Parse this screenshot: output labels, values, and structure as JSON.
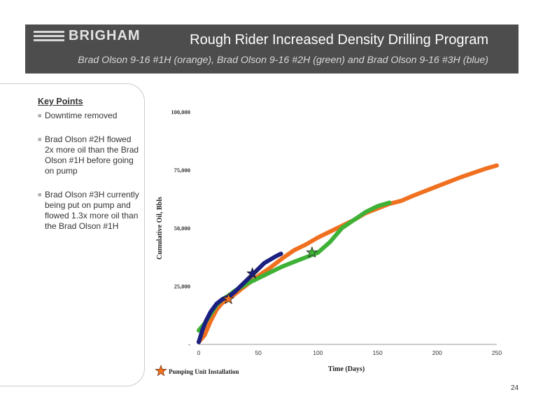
{
  "header": {
    "logo_text": "BRIGHAM",
    "title": "Rough Rider Increased Density Drilling Program",
    "subtitle": "Brad Olson 9-16 #1H (orange), Brad Olson 9-16 #2H (green) and Brad Olson 9-16 #3H (blue)"
  },
  "key_points": {
    "title": "Key Points",
    "items": [
      {
        "text": "Downtime removed"
      },
      {
        "text": "Brad Olson #2H flowed 2x more oil than the Brad Olson #1H before going on pump"
      },
      {
        "text": "Brad Olson #3H currently being put on pump and flowed 1.3x more oil than the Brad Olson #1H"
      }
    ]
  },
  "page_number": "24",
  "chart_data": {
    "type": "line",
    "title": "",
    "xlabel": "Time (Days)",
    "ylabel": "Cumulative Oil, Bbls",
    "xlim": [
      0,
      250
    ],
    "ylim": [
      0,
      100000
    ],
    "x_ticks": [
      "0",
      "50",
      "100",
      "150",
      "200",
      "250"
    ],
    "y_ticks": [
      "-",
      "25,000",
      "50,000",
      "75,000",
      "100,000"
    ],
    "grid": false,
    "series": [
      {
        "color": "#f07020",
        "x": [
          0,
          5,
          10,
          15,
          20,
          25,
          30,
          40,
          50,
          60,
          70,
          80,
          90,
          100,
          110,
          120,
          130,
          140,
          150,
          160,
          170,
          180,
          200,
          220,
          240,
          250
        ],
        "y": [
          1000,
          4000,
          10000,
          15000,
          18000,
          19500,
          21500,
          25500,
          29500,
          33000,
          37000,
          40500,
          43000,
          46000,
          48500,
          51000,
          53500,
          56500,
          58500,
          60500,
          61800,
          64000,
          68000,
          72000,
          75500,
          77000
        ]
      },
      {
        "color": "#3eb236",
        "x": [
          0,
          5,
          10,
          15,
          20,
          25,
          30,
          40,
          50,
          60,
          70,
          80,
          90,
          100,
          110,
          120,
          130,
          140,
          150,
          160
        ],
        "y": [
          6000,
          9000,
          13000,
          17000,
          19500,
          21000,
          23000,
          26000,
          28500,
          31000,
          33500,
          35500,
          37500,
          39500,
          44000,
          50000,
          53500,
          57000,
          59500,
          61000
        ]
      },
      {
        "color": "#1a1f80",
        "x": [
          0,
          3,
          6,
          10,
          15,
          20,
          25,
          30,
          35,
          40,
          45,
          50,
          55,
          60,
          65,
          69
        ],
        "y": [
          1000,
          6000,
          10000,
          14000,
          17500,
          19500,
          20500,
          22500,
          25000,
          27500,
          30000,
          32500,
          35000,
          36500,
          38000,
          39000
        ]
      }
    ],
    "markers": [
      {
        "x": 25,
        "y": 19500,
        "color": "#f07020"
      },
      {
        "x": 95,
        "y": 39500,
        "color": "#3eb236"
      },
      {
        "x": 45,
        "y": 30500,
        "color": "#1a1f80"
      }
    ],
    "legend": {
      "label": "Pumping Unit Installation",
      "color": "#f07020",
      "position": "bottom-left"
    }
  }
}
